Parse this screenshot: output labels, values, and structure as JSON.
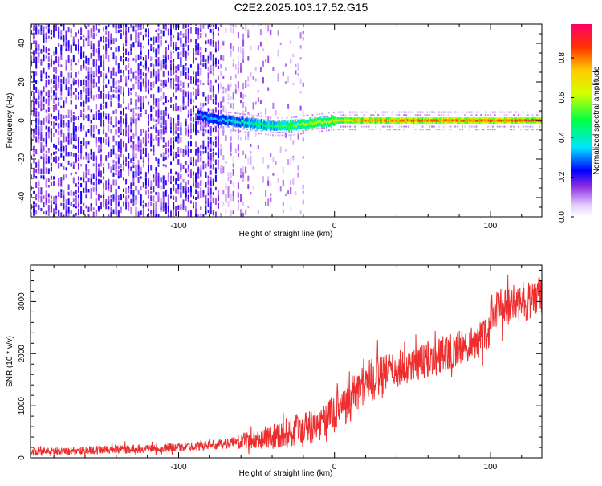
{
  "title": "C2E2.2025.103.17.52.G15",
  "chart_data": [
    {
      "type": "heatmap",
      "xlabel": "Height of straight line (km)",
      "ylabel": "Frequency (Hz)",
      "xlim": [
        -195,
        133
      ],
      "ylim": [
        -50,
        50
      ],
      "xticks": [
        -100,
        0,
        100
      ],
      "yticks": [
        -40,
        -20,
        0,
        20,
        40
      ],
      "colorbar": {
        "label": "Normalized spectral amplitude",
        "range": [
          0,
          0.97
        ],
        "ticks": [
          0.0,
          0.2,
          0.4,
          0.6,
          0.8
        ],
        "colormap": "rainbow (violet to red)"
      },
      "description_of_data": {
        "noise_region_x": [
          -195,
          -20
        ],
        "signal_onset_x": -88,
        "signal_center_hz_by_height": [
          [
            -88,
            3
          ],
          [
            -80,
            1
          ],
          [
            -70,
            0
          ],
          [
            -60,
            -1
          ],
          [
            -50,
            -2
          ],
          [
            -40,
            -3
          ],
          [
            -30,
            -3
          ],
          [
            -20,
            -2
          ],
          [
            -10,
            -1
          ],
          [
            0,
            0
          ],
          [
            20,
            0
          ],
          [
            60,
            0
          ],
          [
            100,
            0
          ],
          [
            133,
            0
          ]
        ],
        "signal_amplitude_by_height": [
          [
            -88,
            0.35
          ],
          [
            -70,
            0.4
          ],
          [
            -40,
            0.55
          ],
          [
            -20,
            0.65
          ],
          [
            0,
            0.75
          ],
          [
            20,
            0.85
          ],
          [
            60,
            0.9
          ],
          [
            100,
            0.92
          ],
          [
            133,
            0.95
          ]
        ]
      }
    },
    {
      "type": "line",
      "xlabel": "Height of straight line (km)",
      "ylabel": "SNR (10 * v/v)",
      "xlim": [
        -195,
        133
      ],
      "ylim": [
        0,
        3700
      ],
      "xticks": [
        -100,
        0,
        100
      ],
      "yticks": [
        0,
        1000,
        2000,
        3000
      ],
      "series": [
        {
          "color": "#ee2e2e",
          "trend": {
            "x": [
              -195,
              -150,
              -100,
              -70,
              -50,
              -30,
              -20,
              -10,
              0,
              10,
              20,
              40,
              60,
              80,
              99,
              101,
              115,
              133
            ],
            "y": [
              120,
              150,
              200,
              270,
              360,
              480,
              540,
              630,
              880,
              1150,
              1450,
              1700,
              1900,
              2100,
              2350,
              2850,
              2950,
              3100
            ]
          },
          "noise_amplitude": {
            "x": [
              -195,
              -70,
              -50,
              -20,
              0,
              10,
              40,
              100,
              133
            ],
            "y": [
              80,
              90,
              200,
              350,
              330,
              500,
              350,
              350,
              400
            ]
          }
        }
      ]
    }
  ]
}
